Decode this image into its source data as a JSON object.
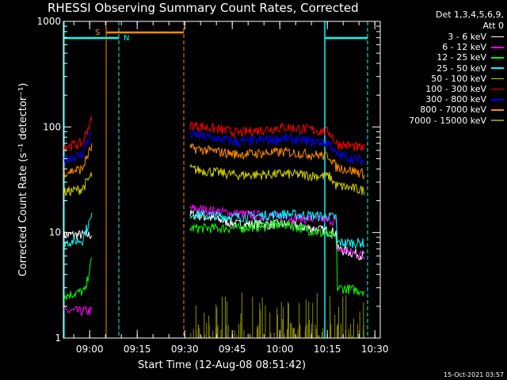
{
  "chart_data": {
    "type": "line",
    "title": "RHESSI Observing Summary Count Rates, Corrected",
    "xlabel": "Start Time (12-Aug-08 08:51:42)",
    "ylabel": "Corrected Count Rate (s⁻¹ detector⁻¹)",
    "y_scale": "log",
    "ylim": [
      1,
      1000
    ],
    "xlim_minutes": [
      0,
      100
    ],
    "x_ticks": [
      {
        "label": "09:00",
        "minute": 8.3
      },
      {
        "label": "09:15",
        "minute": 23.3
      },
      {
        "label": "09:30",
        "minute": 38.3
      },
      {
        "label": "09:45",
        "minute": 53.3
      },
      {
        "label": "10:00",
        "minute": 68.3
      },
      {
        "label": "10:15",
        "minute": 83.3
      },
      {
        "label": "10:30",
        "minute": 98.3
      }
    ],
    "y_ticks": [
      {
        "label": "1",
        "value": 1
      },
      {
        "label": "10",
        "value": 10
      },
      {
        "label": "100",
        "value": 100
      },
      {
        "label": "1000",
        "value": 1000
      }
    ],
    "legend_header": [
      "Det 1,3,4,5,6,9,",
      "Att 0"
    ],
    "legend_position": "right",
    "series": [
      {
        "name": "3 - 6 keV",
        "color": "#ffffff",
        "pre": [
          [
            0,
            9.5
          ],
          [
            9,
            9.5
          ]
        ],
        "post": [
          [
            40,
            15
          ],
          [
            55,
            12
          ],
          [
            70,
            12
          ],
          [
            86,
            10
          ],
          [
            86.5,
            7
          ],
          [
            95,
            6
          ]
        ]
      },
      {
        "name": "6 - 12 keV",
        "color": "#ff00ff",
        "pre": [
          [
            0,
            1.8
          ],
          [
            9,
            1.8
          ]
        ],
        "post": [
          [
            40,
            17
          ],
          [
            55,
            15
          ],
          [
            70,
            14
          ],
          [
            86,
            13
          ],
          [
            86.5,
            7
          ],
          [
            95,
            6
          ]
        ]
      },
      {
        "name": "12 - 25 keV",
        "color": "#00ff00",
        "pre": [
          [
            0,
            2.5
          ],
          [
            7,
            2.8
          ],
          [
            9,
            5.5
          ]
        ],
        "post": [
          [
            40,
            11
          ],
          [
            55,
            11
          ],
          [
            70,
            12
          ],
          [
            86,
            9
          ],
          [
            86.5,
            3
          ],
          [
            95,
            2.8
          ]
        ]
      },
      {
        "name": "25 - 50 keV",
        "color": "#00ffff",
        "pre": [
          [
            0,
            8
          ],
          [
            6,
            8.5
          ],
          [
            9,
            14
          ]
        ],
        "post": [
          [
            40,
            15
          ],
          [
            55,
            14
          ],
          [
            70,
            15
          ],
          [
            86,
            14
          ],
          [
            86.5,
            8
          ],
          [
            95,
            8
          ]
        ]
      },
      {
        "name": "50 - 100 keV",
        "color": "#d4d400",
        "pre": [
          [
            0,
            24
          ],
          [
            6,
            26
          ],
          [
            9,
            35
          ]
        ],
        "post": [
          [
            40,
            40
          ],
          [
            55,
            35
          ],
          [
            70,
            36
          ],
          [
            84,
            34
          ],
          [
            86,
            28
          ],
          [
            95,
            25
          ]
        ]
      },
      {
        "name": "100 - 300 keV",
        "color": "#ff0000",
        "pre": [
          [
            0,
            65
          ],
          [
            6,
            70
          ],
          [
            9,
            118
          ]
        ],
        "post": [
          [
            40,
            105
          ],
          [
            55,
            88
          ],
          [
            70,
            100
          ],
          [
            84,
            90
          ],
          [
            86,
            70
          ],
          [
            95,
            62
          ]
        ]
      },
      {
        "name": "300 - 800 keV",
        "color": "#0000ff",
        "pre": [
          [
            0,
            49
          ],
          [
            6,
            55
          ],
          [
            9,
            90
          ]
        ],
        "post": [
          [
            40,
            85
          ],
          [
            55,
            72
          ],
          [
            70,
            78
          ],
          [
            84,
            70
          ],
          [
            86,
            55
          ],
          [
            95,
            47
          ]
        ]
      },
      {
        "name": "800 - 7000 keV",
        "color": "#ff8c00",
        "pre": [
          [
            0,
            37
          ],
          [
            6,
            40
          ],
          [
            9,
            65
          ]
        ],
        "post": [
          [
            40,
            63
          ],
          [
            55,
            55
          ],
          [
            70,
            58
          ],
          [
            84,
            53
          ],
          [
            86,
            42
          ],
          [
            95,
            36
          ]
        ]
      },
      {
        "name": "7000 - 15000 keV",
        "color": "#8c8c00",
        "pre": [],
        "post": [
          [
            40,
            1
          ],
          [
            95,
            1
          ]
        ]
      }
    ],
    "flag_labels": {
      "saa": "S",
      "night": "N"
    }
  },
  "timestamp": "15-Oct-2021 03:57"
}
